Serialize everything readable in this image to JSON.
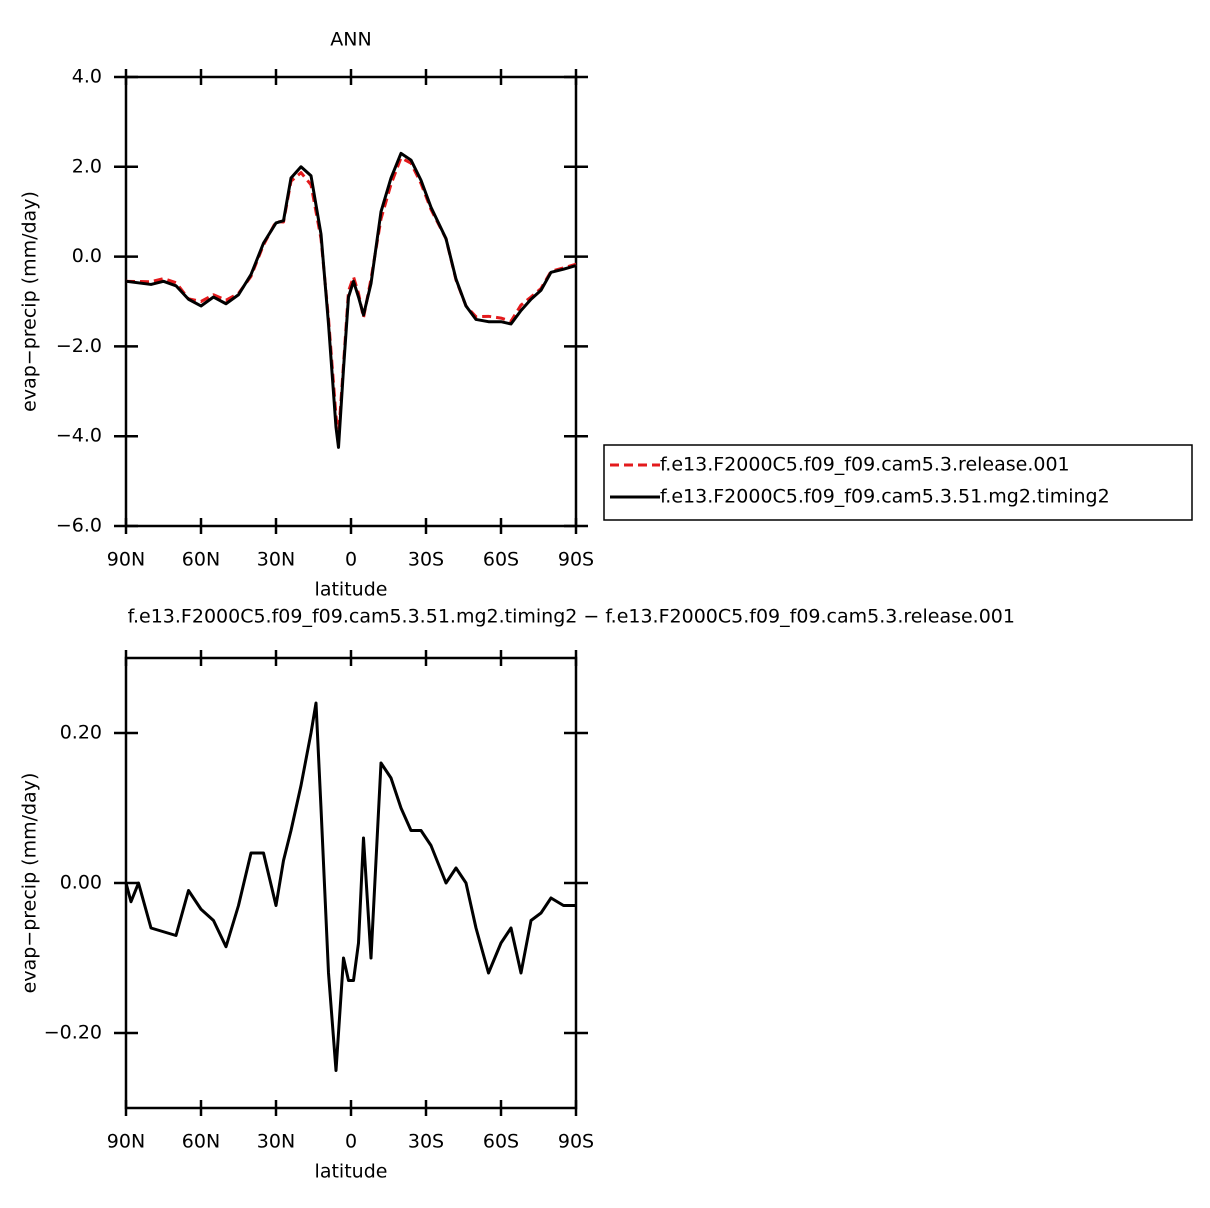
{
  "chart_data": [
    {
      "type": "line",
      "title": "ANN",
      "x_label": "latitude",
      "y_label": "evap−precip (mm/day)",
      "x": [
        90,
        80,
        75,
        70,
        65,
        60,
        55,
        50,
        45,
        40,
        35,
        30,
        27,
        24,
        20,
        16,
        12,
        9,
        6,
        5,
        3,
        1,
        -1,
        -3,
        -5,
        -8,
        -12,
        -16,
        -20,
        -24,
        -28,
        -32,
        -38,
        -42,
        -46,
        -50,
        -55,
        -60,
        -64,
        -68,
        -72,
        -76,
        -80,
        -85,
        -90
      ],
      "series": [
        {
          "name": "f.e13.F2000C5.f09_f09.cam5.3.release.001",
          "color": "#e31a1c",
          "line_style": "dashed",
          "values": [
            -0.55,
            -0.56,
            -0.49,
            -0.58,
            -0.94,
            -1.0,
            -0.85,
            -0.97,
            -0.82,
            -0.44,
            0.26,
            0.78,
            0.77,
            1.68,
            1.87,
            1.6,
            0.4,
            -1.38,
            -3.55,
            -4.0,
            -2.4,
            -0.77,
            -0.45,
            -0.82,
            -1.36,
            -0.5,
            0.84,
            1.61,
            2.2,
            2.08,
            1.63,
            1.05,
            0.4,
            -0.52,
            -1.1,
            -1.34,
            -1.33,
            -1.37,
            -1.44,
            -1.08,
            -0.9,
            -0.71,
            -0.33,
            -0.25,
            -0.17
          ]
        },
        {
          "name": "f.e13.F2000C5.f09_f09.cam5.3.51.mg2.timing2",
          "color": "#000000",
          "line_style": "solid",
          "values": [
            -0.55,
            -0.62,
            -0.55,
            -0.65,
            -0.95,
            -1.1,
            -0.9,
            -1.05,
            -0.85,
            -0.4,
            0.3,
            0.75,
            0.8,
            1.75,
            2.0,
            1.8,
            0.5,
            -1.5,
            -3.8,
            -4.25,
            -2.5,
            -0.9,
            -0.55,
            -0.9,
            -1.3,
            -0.6,
            1.0,
            1.75,
            2.3,
            2.15,
            1.7,
            1.1,
            0.4,
            -0.5,
            -1.1,
            -1.4,
            -1.45,
            -1.45,
            -1.5,
            -1.2,
            -0.95,
            -0.75,
            -0.35,
            -0.28,
            -0.2
          ]
        }
      ],
      "xlim": [
        90,
        -90
      ],
      "xticks": [
        {
          "value": 90,
          "label": "90N"
        },
        {
          "value": 60,
          "label": "60N"
        },
        {
          "value": 30,
          "label": "30N"
        },
        0,
        {
          "value": -30,
          "label": "30S"
        },
        {
          "value": -60,
          "label": "60S"
        },
        {
          "value": -90,
          "label": "90S"
        }
      ],
      "ylim": [
        -6,
        4
      ],
      "yticks": [
        {
          "value": -6,
          "label": "−6.0"
        },
        {
          "value": -4,
          "label": "−4.0"
        },
        {
          "value": -2,
          "label": "−2.0"
        },
        {
          "value": 0,
          "label": "0.0"
        },
        {
          "value": 2,
          "label": "2.0"
        },
        {
          "value": 4,
          "label": "4.0"
        }
      ],
      "legend": "right"
    },
    {
      "type": "line",
      "title": "f.e13.F2000C5.f09_f09.cam5.3.51.mg2.timing2 − f.e13.F2000C5.f09_f09.cam5.3.release.001",
      "x_label": "latitude",
      "y_label": "evap−precip (mm/day)",
      "x": [
        90,
        88,
        85,
        80,
        75,
        70,
        65,
        60,
        55,
        50,
        45,
        40,
        35,
        30,
        27,
        24,
        20,
        16,
        14,
        12,
        9,
        6,
        3,
        1,
        -1,
        -3,
        -5,
        -8,
        -12,
        -16,
        -20,
        -24,
        -28,
        -32,
        -38,
        -42,
        -46,
        -50,
        -55,
        -60,
        -64,
        -68,
        -72,
        -76,
        -80,
        -85,
        -90
      ],
      "values": [
        0.0,
        -0.025,
        0.0,
        -0.06,
        -0.065,
        -0.07,
        -0.01,
        -0.035,
        -0.05,
        -0.085,
        -0.03,
        0.04,
        0.04,
        -0.03,
        0.03,
        0.07,
        0.13,
        0.2,
        0.24,
        0.1,
        -0.12,
        -0.25,
        -0.1,
        -0.13,
        -0.13,
        -0.08,
        0.06,
        -0.1,
        0.16,
        0.14,
        0.1,
        0.07,
        0.07,
        0.05,
        0.0,
        0.02,
        0.0,
        -0.06,
        -0.12,
        -0.08,
        -0.06,
        -0.12,
        -0.05,
        -0.04,
        -0.02,
        -0.03,
        -0.03
      ],
      "color": "#000000",
      "xlim": [
        90,
        -90
      ],
      "xticks": [
        {
          "value": 90,
          "label": "90N"
        },
        {
          "value": 60,
          "label": "60N"
        },
        {
          "value": 30,
          "label": "30N"
        },
        0,
        {
          "value": -30,
          "label": "30S"
        },
        {
          "value": -60,
          "label": "60S"
        },
        {
          "value": -90,
          "label": "90S"
        }
      ],
      "ylim": [
        -0.3,
        0.3
      ],
      "yticks": [
        {
          "value": -0.2,
          "label": "−0.20"
        },
        {
          "value": 0,
          "label": "0.00"
        },
        {
          "value": 0.2,
          "label": "0.20"
        }
      ]
    }
  ]
}
